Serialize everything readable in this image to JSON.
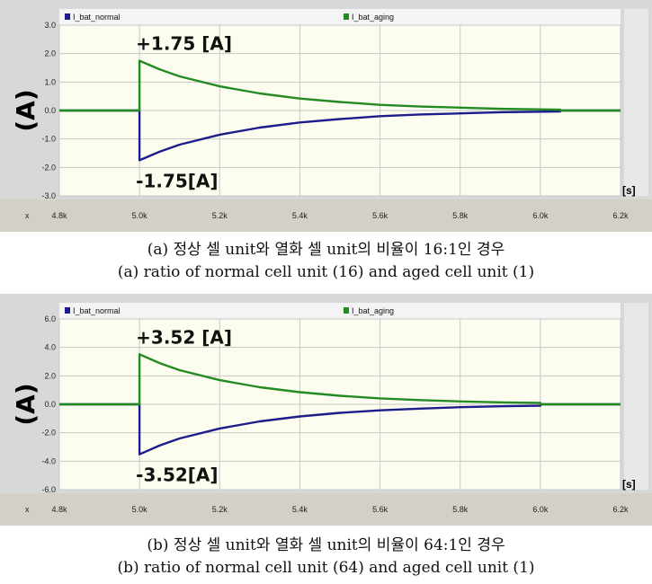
{
  "chart_data": [
    {
      "type": "line",
      "panel": "a",
      "ylabel": "(A)",
      "x_unit": "[s]",
      "x_axis_name": "x",
      "xlim": [
        4.8,
        6.2
      ],
      "ylim": [
        -3.0,
        3.0
      ],
      "x_ticks": [
        "4.8k",
        "5.0k",
        "5.2k",
        "5.4k",
        "5.6k",
        "5.8k",
        "6.0k",
        "6.2k"
      ],
      "x_tick_values": [
        4.8,
        5.0,
        5.2,
        5.4,
        5.6,
        5.8,
        6.0,
        6.2
      ],
      "y_ticks": [
        "3.0",
        "2.0",
        "1.0",
        "0.0",
        "-1.0",
        "-2.0",
        "-3.0"
      ],
      "y_tick_values": [
        3.0,
        2.0,
        1.0,
        0.0,
        -1.0,
        -2.0,
        -3.0
      ],
      "grid": true,
      "series": [
        {
          "name": "I_bat_normal",
          "color": "#1c1c8c",
          "x": [
            4.8,
            5.0,
            5.0,
            5.05,
            5.1,
            5.2,
            5.3,
            5.4,
            5.5,
            5.6,
            5.7,
            5.8,
            5.9,
            6.05,
            6.05,
            6.2
          ],
          "y": [
            0,
            0,
            -1.75,
            -1.45,
            -1.2,
            -0.85,
            -0.6,
            -0.42,
            -0.3,
            -0.2,
            -0.14,
            -0.1,
            -0.06,
            -0.03,
            0,
            0
          ]
        },
        {
          "name": "I_bat_aging",
          "color": "#228b22",
          "x": [
            4.8,
            5.0,
            5.0,
            5.05,
            5.1,
            5.2,
            5.3,
            5.4,
            5.5,
            5.6,
            5.7,
            5.8,
            5.9,
            6.05,
            6.05,
            6.2
          ],
          "y": [
            0,
            0,
            1.75,
            1.45,
            1.2,
            0.85,
            0.6,
            0.42,
            0.3,
            0.2,
            0.14,
            0.1,
            0.06,
            0.03,
            0,
            0
          ]
        }
      ],
      "annotations": [
        {
          "text": "+1.75 [A]",
          "x": 5.0,
          "y": 1.75,
          "position": "above"
        },
        {
          "text": "-1.75[A]",
          "x": 5.0,
          "y": -1.75,
          "position": "below"
        }
      ],
      "legend": "top"
    },
    {
      "type": "line",
      "panel": "b",
      "ylabel": "(A)",
      "x_unit": "[s]",
      "x_axis_name": "x",
      "xlim": [
        4.8,
        6.2
      ],
      "ylim": [
        -6.0,
        6.0
      ],
      "x_ticks": [
        "4.8k",
        "5.0k",
        "5.2k",
        "5.4k",
        "5.6k",
        "5.8k",
        "6.0k",
        "6.2k"
      ],
      "x_tick_values": [
        4.8,
        5.0,
        5.2,
        5.4,
        5.6,
        5.8,
        6.0,
        6.2
      ],
      "y_ticks": [
        "6.0",
        "4.0",
        "2.0",
        "0.0",
        "-2.0",
        "-4.0",
        "-6.0"
      ],
      "y_tick_values": [
        6.0,
        4.0,
        2.0,
        0.0,
        -2.0,
        -4.0,
        -6.0
      ],
      "grid": true,
      "series": [
        {
          "name": "I_bat_normal",
          "color": "#1c1c8c",
          "x": [
            4.8,
            5.0,
            5.0,
            5.05,
            5.1,
            5.2,
            5.3,
            5.4,
            5.5,
            5.6,
            5.7,
            5.8,
            5.9,
            6.0,
            6.0,
            6.2
          ],
          "y": [
            0,
            0,
            -3.52,
            -2.9,
            -2.4,
            -1.7,
            -1.2,
            -0.85,
            -0.6,
            -0.42,
            -0.3,
            -0.2,
            -0.14,
            -0.1,
            0,
            0
          ]
        },
        {
          "name": "I_bat_aging",
          "color": "#228b22",
          "x": [
            4.8,
            5.0,
            5.0,
            5.05,
            5.1,
            5.2,
            5.3,
            5.4,
            5.5,
            5.6,
            5.7,
            5.8,
            5.9,
            6.0,
            6.0,
            6.2
          ],
          "y": [
            0,
            0,
            3.52,
            2.9,
            2.4,
            1.7,
            1.2,
            0.85,
            0.6,
            0.42,
            0.3,
            0.2,
            0.14,
            0.1,
            0,
            0
          ]
        }
      ],
      "annotations": [
        {
          "text": "+3.52 [A]",
          "x": 5.0,
          "y": 3.52,
          "position": "above"
        },
        {
          "text": "-3.52[A]",
          "x": 5.0,
          "y": -3.52,
          "position": "below"
        }
      ],
      "legend": "top"
    }
  ],
  "captions": {
    "a_kr": "(a) 정상 셀 unit와 열화 셀 unit의 비율이 16:1인 경우",
    "a_en": "(a) ratio of normal cell unit (16) and aged cell unit (1)",
    "b_kr": "(b) 정상 셀 unit와 열화 셀 unit의 비율이 64:1인 경우",
    "b_en": "(b) ratio of normal cell unit (64) and aged cell unit (1)"
  },
  "colors": {
    "plot_bg": "#fdfdef",
    "grid": "#c8c8c8",
    "frame": "#d8d8d8",
    "axis_strip": "#d4d0c8"
  }
}
